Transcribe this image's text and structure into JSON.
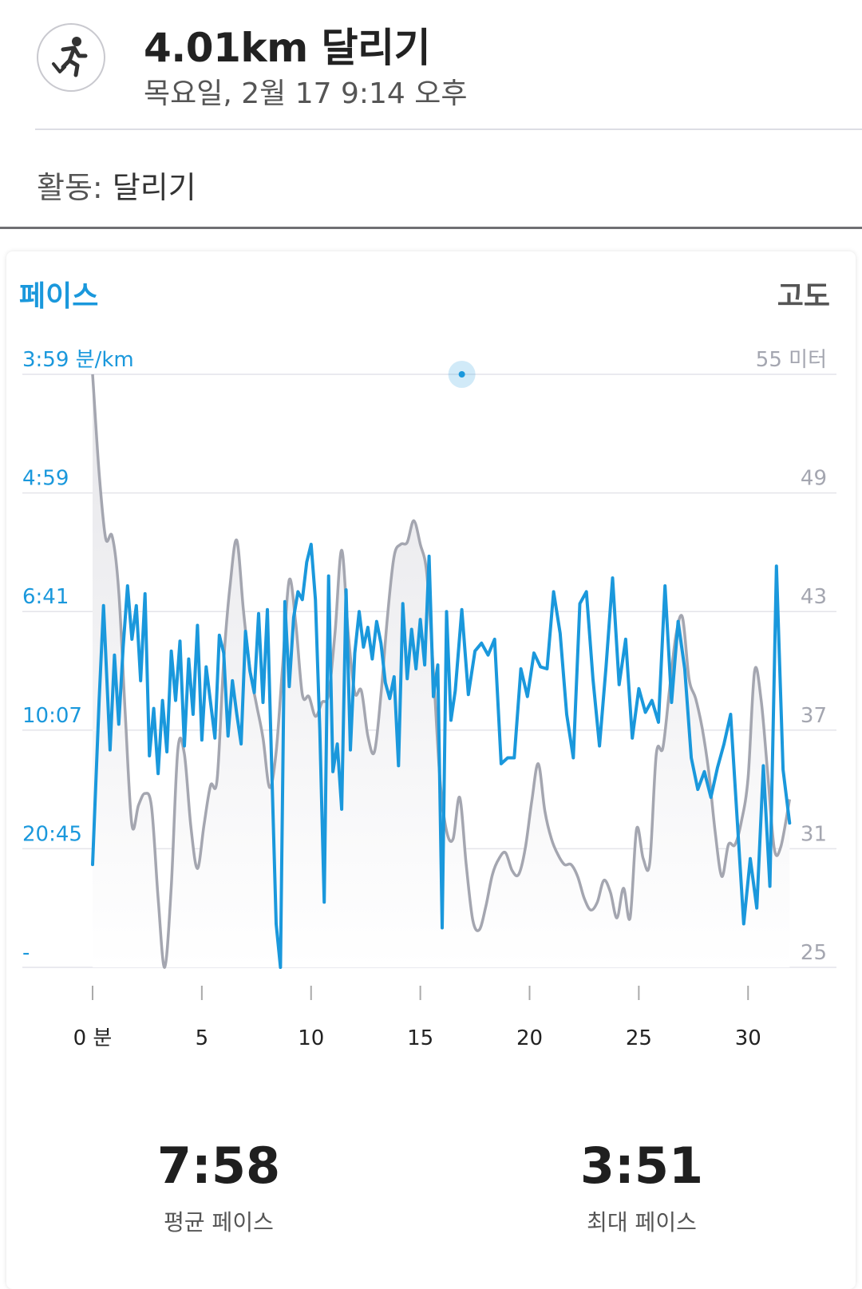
{
  "header": {
    "title": "4.01km 달리기",
    "subtitle": "목요일, 2월 17 9:14 오후",
    "icon": "running-person-icon"
  },
  "activity": {
    "label": "활동:",
    "value": "달리기"
  },
  "colors": {
    "pace": "#1a98dc",
    "elevation": "#a4a6b0",
    "fill": "#e6e6ea",
    "grid": "#e4e4ea"
  },
  "chart_data": {
    "type": "line",
    "left_title": "페이스",
    "right_title": "고도",
    "left_ticks": [
      "3:59 분/km",
      "4:59",
      "6:41",
      "10:07",
      "20:45",
      "-"
    ],
    "right_ticks": [
      "55 미터",
      "49",
      "43",
      "37",
      "31",
      "25"
    ],
    "x_ticks": [
      "0 분",
      "5",
      "10",
      "15",
      "20",
      "25",
      "30"
    ],
    "xlim": [
      0,
      32
    ],
    "ylim_elevation": [
      25,
      55
    ],
    "highlight_x": 16.9,
    "series": [
      {
        "name": "페이스",
        "x": [
          0,
          0.3,
          0.5,
          0.8,
          1.0,
          1.2,
          1.4,
          1.6,
          1.8,
          2.0,
          2.2,
          2.4,
          2.6,
          2.8,
          3.0,
          3.2,
          3.4,
          3.6,
          3.8,
          4.0,
          4.2,
          4.4,
          4.6,
          4.8,
          5.0,
          5.2,
          5.4,
          5.6,
          5.8,
          6.0,
          6.2,
          6.4,
          6.6,
          6.8,
          7.0,
          7.2,
          7.4,
          7.6,
          7.8,
          8.0,
          8.2,
          8.4,
          8.6,
          8.8,
          9.0,
          9.2,
          9.4,
          9.6,
          9.8,
          10.0,
          10.2,
          10.4,
          10.6,
          10.8,
          11.0,
          11.2,
          11.4,
          11.6,
          11.8,
          12.0,
          12.2,
          12.4,
          12.6,
          12.8,
          13.0,
          13.2,
          13.4,
          13.6,
          13.8,
          14.0,
          14.2,
          14.4,
          14.6,
          14.8,
          15.0,
          15.2,
          15.4,
          15.6,
          15.8,
          16.0,
          16.2,
          16.4,
          16.6,
          16.9,
          17.2,
          17.5,
          17.8,
          18.1,
          18.4,
          18.7,
          19.0,
          19.3,
          19.6,
          19.9,
          20.2,
          20.5,
          20.8,
          21.1,
          21.4,
          21.7,
          22.0,
          22.3,
          22.6,
          22.9,
          23.2,
          23.5,
          23.8,
          24.1,
          24.4,
          24.7,
          25.0,
          25.3,
          25.6,
          25.9,
          26.2,
          26.5,
          26.8,
          27.1,
          27.4,
          27.7,
          28.0,
          28.3,
          28.6,
          28.9,
          29.2,
          29.5,
          29.8,
          30.1,
          30.4,
          30.7,
          31.0,
          31.3,
          31.6,
          31.9
        ],
        "y": [
          30.2,
          38.5,
          43.3,
          36.0,
          40.8,
          37.3,
          41.2,
          44.3,
          41.6,
          43.3,
          39.5,
          43.9,
          35.7,
          38.1,
          34.8,
          38.5,
          35.9,
          41.0,
          38.5,
          41.5,
          36.2,
          40.6,
          37.8,
          42.3,
          36.5,
          40.2,
          38.4,
          36.6,
          41.8,
          40.9,
          36.7,
          39.5,
          37.8,
          36.3,
          42.0,
          40.0,
          38.9,
          42.9,
          38.4,
          43.1,
          35.0,
          27.2,
          25.0,
          43.5,
          39.2,
          42.7,
          44.0,
          43.6,
          45.5,
          46.4,
          43.6,
          37.0,
          28.3,
          44.8,
          34.9,
          36.3,
          33.0,
          44.1,
          36.0,
          40.9,
          43.0,
          41.2,
          42.2,
          40.6,
          42.5,
          41.4,
          39.4,
          38.6,
          39.7,
          35.2,
          43.4,
          39.6,
          42.1,
          40.1,
          42.6,
          40.3,
          45.8,
          38.7,
          40.3,
          27.0,
          43.0,
          37.5,
          39.0,
          43.1,
          38.8,
          41.0,
          41.4,
          40.8,
          41.6,
          35.3,
          35.6,
          35.6,
          40.1,
          38.7,
          40.9,
          40.2,
          40.1,
          44.0,
          41.9,
          37.8,
          35.6,
          43.4,
          44.0,
          39.6,
          36.2,
          40.2,
          44.7,
          39.3,
          41.6,
          36.6,
          39.1,
          37.9,
          38.5,
          37.4,
          44.3,
          38.4,
          42.5,
          40.1,
          35.6,
          34.0,
          34.9,
          33.6,
          35.1,
          36.3,
          37.8,
          32.5,
          27.2,
          30.5,
          28.0,
          35.2,
          29.1,
          45.3,
          35.0,
          32.3
        ],
        "y_units_note": "pace plotted on the chart's pace axis; values read as position between ticks 3:59 (top) and '-' (bottom) is not printed as data"
      },
      {
        "name": "고도",
        "x": [
          0,
          0.3,
          0.6,
          0.9,
          1.2,
          1.5,
          1.8,
          2.1,
          2.4,
          2.7,
          3.0,
          3.3,
          3.6,
          3.9,
          4.2,
          4.5,
          4.8,
          5.1,
          5.4,
          5.7,
          6.0,
          6.3,
          6.6,
          6.9,
          7.2,
          7.5,
          7.8,
          8.1,
          8.4,
          8.7,
          9.0,
          9.3,
          9.6,
          9.9,
          10.2,
          10.5,
          10.8,
          11.1,
          11.4,
          11.7,
          12.0,
          12.3,
          12.6,
          12.9,
          13.2,
          13.5,
          13.8,
          14.1,
          14.4,
          14.7,
          15.0,
          15.3,
          15.6,
          15.9,
          16.2,
          16.5,
          16.8,
          17.1,
          17.4,
          17.7,
          18.0,
          18.3,
          18.6,
          18.9,
          19.2,
          19.5,
          19.8,
          20.1,
          20.4,
          20.7,
          21.0,
          21.3,
          21.6,
          21.9,
          22.2,
          22.5,
          22.8,
          23.1,
          23.4,
          23.7,
          24.0,
          24.3,
          24.6,
          24.9,
          25.2,
          25.5,
          25.8,
          26.1,
          26.4,
          26.7,
          27.0,
          27.3,
          27.6,
          27.9,
          28.2,
          28.5,
          28.8,
          29.1,
          29.4,
          29.7,
          30.0,
          30.3,
          30.6,
          30.9,
          31.2,
          31.5,
          31.9
        ],
        "y": [
          55.0,
          50.0,
          46.7,
          46.8,
          44.0,
          37.7,
          32.2,
          33.2,
          33.8,
          33.1,
          28.5,
          25.0,
          29.1,
          36.0,
          35.8,
          32.1,
          30.0,
          32.2,
          34.2,
          34.5,
          40.5,
          44.4,
          46.6,
          43.1,
          40.1,
          38.3,
          36.6,
          34.1,
          35.9,
          40.3,
          44.6,
          42.4,
          38.8,
          38.7,
          37.7,
          38.4,
          38.8,
          42.0,
          46.1,
          41.9,
          38.9,
          39.0,
          36.7,
          35.9,
          38.8,
          42.8,
          45.8,
          46.4,
          46.5,
          47.6,
          46.4,
          44.9,
          40.0,
          34.5,
          31.9,
          31.5,
          33.6,
          30.2,
          27.4,
          26.9,
          28.1,
          29.7,
          30.5,
          30.8,
          29.9,
          29.7,
          31.0,
          33.4,
          35.3,
          32.9,
          31.5,
          30.7,
          30.2,
          30.2,
          29.6,
          28.5,
          27.9,
          28.3,
          29.4,
          28.8,
          27.5,
          29.0,
          27.5,
          32.0,
          30.5,
          30.3,
          35.8,
          36.1,
          39.0,
          41.8,
          42.7,
          39.6,
          38.6,
          37.1,
          34.9,
          31.8,
          29.6,
          31.2,
          31.2,
          32.4,
          34.6,
          40.0,
          38.5,
          34.8,
          31.0,
          31.1,
          33.5
        ]
      }
    ]
  },
  "stats": [
    {
      "value": "7:58",
      "label": "평균 페이스"
    },
    {
      "value": "3:51",
      "label": "최대 페이스"
    }
  ]
}
